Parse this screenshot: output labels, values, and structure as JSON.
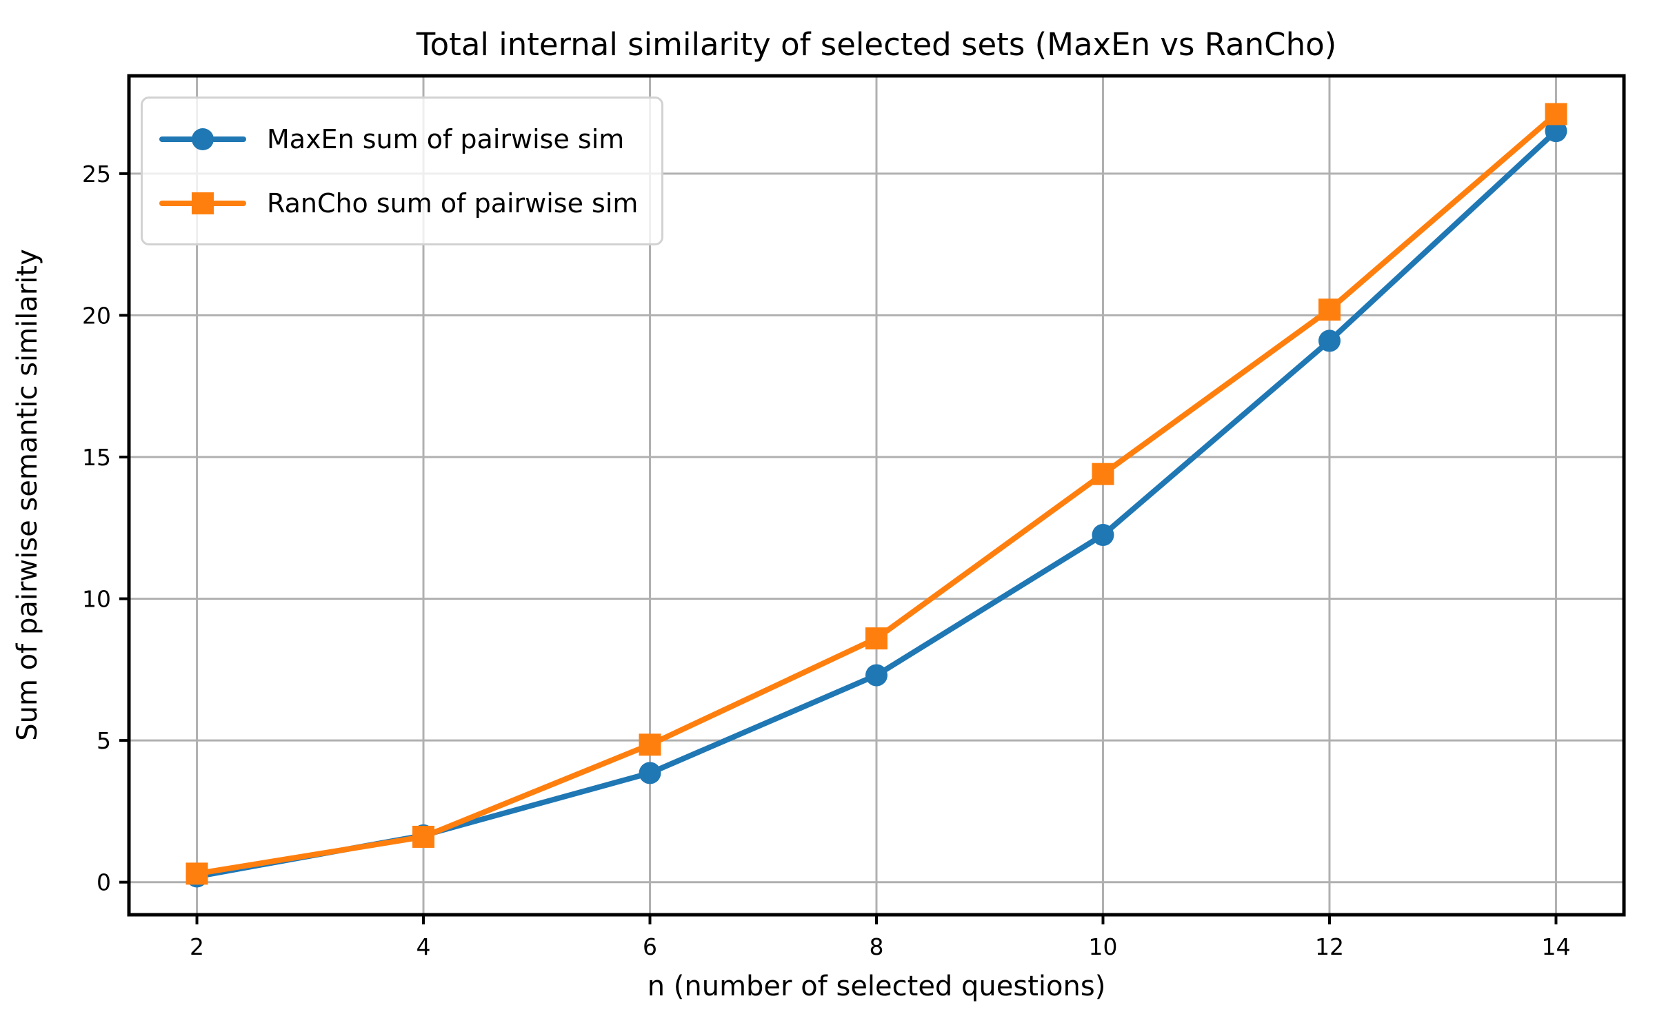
{
  "figure": {
    "background": "#ffffff",
    "text_color": "#000000"
  },
  "chart_data": {
    "type": "line",
    "title": "Total internal similarity of selected sets (MaxEn vs RanCho)",
    "xlabel": "n (number of selected questions)",
    "ylabel": "Sum of pairwise semantic similarity",
    "x": [
      2,
      4,
      6,
      8,
      10,
      12,
      14
    ],
    "series": [
      {
        "name": "MaxEn sum of pairwise sim",
        "color": "#1f77b4",
        "marker": "circle",
        "values": [
          0.2,
          1.65,
          3.85,
          7.3,
          12.25,
          19.1,
          26.5
        ]
      },
      {
        "name": "RanCho sum of pairwise sim",
        "color": "#ff7f0e",
        "marker": "square",
        "values": [
          0.3,
          1.6,
          4.85,
          8.6,
          14.4,
          20.2,
          27.1
        ]
      }
    ],
    "xticks": [
      "2",
      "4",
      "6",
      "8",
      "10",
      "12",
      "14"
    ],
    "yticks": [
      "0",
      "5",
      "10",
      "15",
      "20",
      "25"
    ],
    "xlim": [
      1.4,
      14.6
    ],
    "ylim": [
      -1.15,
      28.45
    ],
    "grid": true,
    "grid_color": "#b0b0b0",
    "spine_color": "#000000",
    "legend_position": "upper-left"
  }
}
